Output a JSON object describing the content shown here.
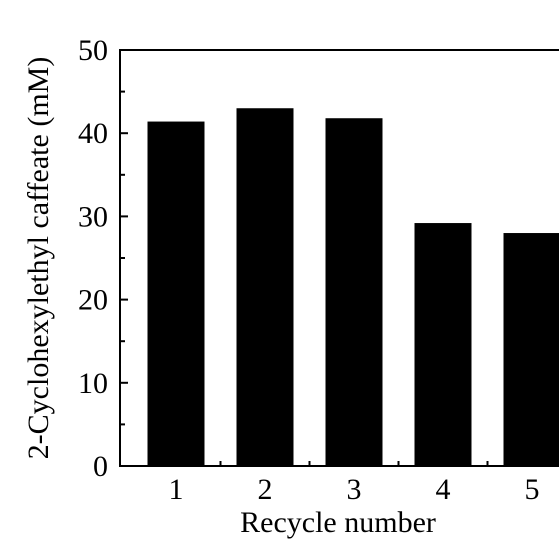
{
  "chart_data": {
    "type": "bar",
    "categories": [
      "1",
      "2",
      "3",
      "4",
      "5"
    ],
    "values": [
      41.4,
      43.0,
      41.8,
      29.2,
      28.0
    ],
    "title": "",
    "xlabel": "Recycle number",
    "ylabel": "2-Cyclohexylethyl caffeate (mM)",
    "ylim": [
      0,
      50
    ],
    "yticks": [
      0,
      10,
      20,
      30,
      40,
      50
    ],
    "grid": false,
    "bar_color": "#000000",
    "axis_color": "#000000"
  }
}
